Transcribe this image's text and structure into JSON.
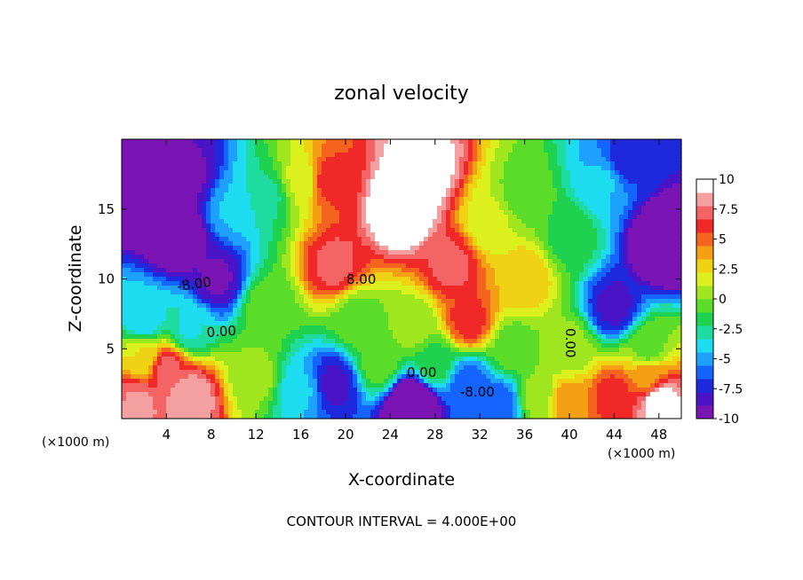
{
  "chart_data": {
    "type": "heatmap",
    "title": "zonal velocity",
    "xlabel": "X-coordinate",
    "ylabel": "Z-coordinate",
    "x_units_left": "(×1000 m)",
    "x_units_right": "(×1000 m)",
    "xlim": [
      0,
      50
    ],
    "ylim": [
      0,
      20
    ],
    "x_ticks": [
      4,
      8,
      12,
      16,
      20,
      24,
      28,
      32,
      36,
      40,
      44,
      48
    ],
    "y_ticks": [
      5,
      10,
      15
    ],
    "colorbar": {
      "range": [
        -10,
        10
      ],
      "ticks": [
        "10",
        "7.5",
        "5",
        "2.5",
        "0",
        "-2.5",
        "-5",
        "-7.5",
        "-10"
      ],
      "tick_values": [
        10,
        7.5,
        5,
        2.5,
        0,
        -2.5,
        -5,
        -7.5,
        -10
      ],
      "colors": [
        "#7a14b4",
        "#4b14c8",
        "#1e28dc",
        "#1464ff",
        "#1ea0ff",
        "#1edcf0",
        "#1edca0",
        "#1ed250",
        "#5adc28",
        "#a0e61e",
        "#dcf01e",
        "#f0d214",
        "#f5a014",
        "#f5641e",
        "#f02828",
        "#f56464",
        "#f5a0a0",
        "#ffffff"
      ]
    },
    "contour_labels": [
      "-8.00",
      "0.00",
      "8.00",
      "0.00",
      "-8.00",
      "0.00"
    ],
    "footer": "CONTOUR INTERVAL = 4.000E+00",
    "centers": [
      {
        "x": 2.5,
        "z": 16,
        "v": -13
      },
      {
        "x": 5,
        "z": 13,
        "v": -11
      },
      {
        "x": 6,
        "z": 17.5,
        "v": -9
      },
      {
        "x": 8.5,
        "z": 10,
        "v": -9
      },
      {
        "x": 10,
        "z": 15,
        "v": -4
      },
      {
        "x": 13,
        "z": 16,
        "v": -2
      },
      {
        "x": 16,
        "z": 17,
        "v": 2
      },
      {
        "x": 18.5,
        "z": 17,
        "v": 7
      },
      {
        "x": 19,
        "z": 11,
        "v": 8
      },
      {
        "x": 25,
        "z": 15,
        "v": 13
      },
      {
        "x": 27,
        "z": 18,
        "v": 11
      },
      {
        "x": 29.5,
        "z": 11,
        "v": 8
      },
      {
        "x": 31,
        "z": 7,
        "v": 7
      },
      {
        "x": 33,
        "z": 14,
        "v": 2
      },
      {
        "x": 36,
        "z": 16,
        "v": 0
      },
      {
        "x": 36,
        "z": 10,
        "v": 4
      },
      {
        "x": 40,
        "z": 13,
        "v": -1
      },
      {
        "x": 43,
        "z": 17,
        "v": -4
      },
      {
        "x": 45,
        "z": 18.5,
        "v": -7
      },
      {
        "x": 48.5,
        "z": 12.5,
        "v": -13
      },
      {
        "x": 44,
        "z": 8,
        "v": -8
      },
      {
        "x": 47,
        "z": 5,
        "v": 0
      },
      {
        "x": 40,
        "z": 5,
        "v": 1
      },
      {
        "x": 35,
        "z": 5,
        "v": 0
      },
      {
        "x": 26,
        "z": 6.5,
        "v": 1
      },
      {
        "x": 21,
        "z": 7,
        "v": 0
      },
      {
        "x": 13,
        "z": 8,
        "v": 0
      },
      {
        "x": 6,
        "z": 6.5,
        "v": -3
      },
      {
        "x": 2,
        "z": 7,
        "v": -4
      },
      {
        "x": 12,
        "z": 3,
        "v": 1
      },
      {
        "x": 4,
        "z": 3.5,
        "v": 8
      },
      {
        "x": 6,
        "z": 1.5,
        "v": 10
      },
      {
        "x": 1.5,
        "z": 1,
        "v": 9
      },
      {
        "x": 2,
        "z": 4.5,
        "v": 3
      },
      {
        "x": 19,
        "z": 2.5,
        "v": -8
      },
      {
        "x": 16,
        "z": 2,
        "v": -4
      },
      {
        "x": 26,
        "z": 1,
        "v": -14
      },
      {
        "x": 31,
        "z": 2.5,
        "v": -6
      },
      {
        "x": 34,
        "z": 1,
        "v": -6
      },
      {
        "x": 37,
        "z": 1.5,
        "v": 1
      },
      {
        "x": 40,
        "z": 1,
        "v": 5
      },
      {
        "x": 44,
        "z": 1.5,
        "v": 7
      },
      {
        "x": 48,
        "z": 1.2,
        "v": 11
      },
      {
        "x": 47,
        "z": 3,
        "v": 5
      },
      {
        "x": 23,
        "z": 4,
        "v": 0
      },
      {
        "x": 28,
        "z": 4,
        "v": -1
      }
    ]
  }
}
